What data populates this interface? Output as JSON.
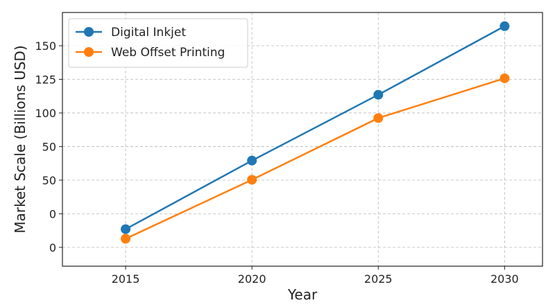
{
  "chart_data": {
    "type": "line",
    "x": [
      2015,
      2020,
      2025,
      2030
    ],
    "xticks": [
      "2015",
      "2020",
      "2025",
      "2030"
    ],
    "yticks": [
      "0",
      "0",
      "50",
      "50",
      "100",
      "125",
      "150"
    ],
    "ylim": [
      -20,
      165
    ],
    "xlabel": "Year",
    "ylabel": "Market Scale (Billions USD)",
    "grid": true,
    "legend_position": "top-left",
    "series": [
      {
        "name": "Digital Inkjet",
        "color": "#1f77b4",
        "values": [
          7,
          57,
          105,
          155
        ]
      },
      {
        "name": "Web Offset Printing",
        "color": "#ff7f0e",
        "values": [
          0,
          43,
          88,
          117
        ]
      }
    ]
  }
}
